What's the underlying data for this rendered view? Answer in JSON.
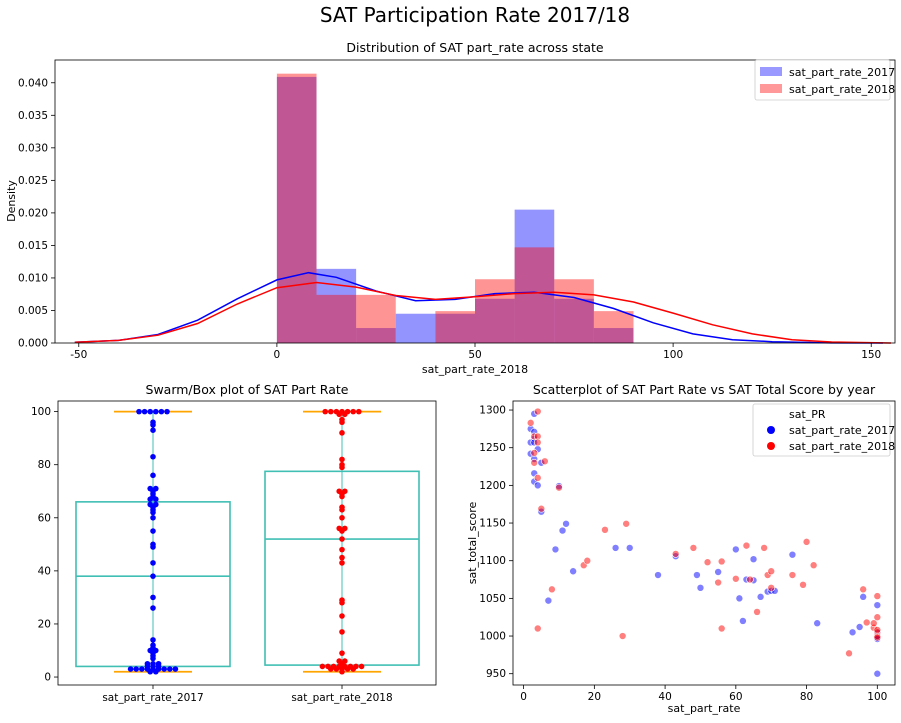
{
  "figure": {
    "suptitle": "SAT Participation Rate 2017/18"
  },
  "colors": {
    "s2017": "#0000ff",
    "s2018": "#ff0000",
    "box": "#40bfb4",
    "whisker": "#ffa500"
  },
  "chart_data": [
    {
      "type": "bar",
      "subtype": "histogram_kde",
      "title": "Distribution of SAT part_rate across state",
      "xlabel": "sat_part_rate_2018",
      "ylabel": "Density",
      "xlim": [
        -56,
        156
      ],
      "ylim": [
        0,
        0.0435
      ],
      "xticks": [
        "-50",
        "0",
        "50",
        "100",
        "150"
      ],
      "yticks": [
        "0.000",
        "0.005",
        "0.010",
        "0.015",
        "0.020",
        "0.025",
        "0.030",
        "0.035",
        "0.040"
      ],
      "legend": {
        "position": "top-right",
        "entries": [
          "sat_part_rate_2017",
          "sat_part_rate_2018"
        ]
      },
      "series": [
        {
          "name": "sat_part_rate_2017",
          "bins": [
            [
              0,
              10,
              0.0409
            ],
            [
              10,
              20,
              0.0114
            ],
            [
              20,
              30,
              0.0023
            ],
            [
              30,
              40,
              0.0045
            ],
            [
              40,
              50,
              0.0045
            ],
            [
              50,
              60,
              0.0068
            ],
            [
              60,
              70,
              0.0205
            ],
            [
              70,
              80,
              0.0068
            ],
            [
              80,
              90,
              0.0023
            ]
          ],
          "kde": [
            [
              -51,
              0.0001
            ],
            [
              -40,
              0.0004
            ],
            [
              -30,
              0.0013
            ],
            [
              -20,
              0.0035
            ],
            [
              -10,
              0.0068
            ],
            [
              0,
              0.0097
            ],
            [
              8,
              0.0108
            ],
            [
              15,
              0.0101
            ],
            [
              25,
              0.008
            ],
            [
              35,
              0.0065
            ],
            [
              45,
              0.0067
            ],
            [
              55,
              0.0076
            ],
            [
              65,
              0.0078
            ],
            [
              75,
              0.007
            ],
            [
              85,
              0.0053
            ],
            [
              95,
              0.0031
            ],
            [
              105,
              0.0014
            ],
            [
              115,
              0.0005
            ],
            [
              125,
              0.0002
            ],
            [
              140,
              2e-05
            ],
            [
              153,
              0.0
            ]
          ]
        },
        {
          "name": "sat_part_rate_2018",
          "bins": [
            [
              0,
              10,
              0.0414
            ],
            [
              10,
              20,
              0.0074
            ],
            [
              20,
              30,
              0.0074
            ],
            [
              40,
              50,
              0.0049
            ],
            [
              50,
              60,
              0.0098
            ],
            [
              60,
              70,
              0.0147
            ],
            [
              70,
              80,
              0.0098
            ],
            [
              80,
              90,
              0.0049
            ]
          ],
          "kde": [
            [
              -51,
              0.0001
            ],
            [
              -40,
              0.0004
            ],
            [
              -30,
              0.0012
            ],
            [
              -20,
              0.003
            ],
            [
              -10,
              0.006
            ],
            [
              0,
              0.0085
            ],
            [
              10,
              0.0093
            ],
            [
              20,
              0.0086
            ],
            [
              30,
              0.0073
            ],
            [
              40,
              0.0067
            ],
            [
              50,
              0.0071
            ],
            [
              60,
              0.0076
            ],
            [
              70,
              0.0078
            ],
            [
              80,
              0.0074
            ],
            [
              90,
              0.0063
            ],
            [
              100,
              0.0046
            ],
            [
              110,
              0.0028
            ],
            [
              120,
              0.0014
            ],
            [
              130,
              0.0005
            ],
            [
              140,
              0.00015
            ],
            [
              155,
              0.0
            ]
          ]
        }
      ]
    },
    {
      "type": "scatter",
      "subtype": "swarm_box",
      "title": "Swarm/Box plot of SAT Part Rate",
      "ylim": [
        -3,
        104
      ],
      "yticks": [
        "0",
        "20",
        "40",
        "60",
        "80",
        "100"
      ],
      "categories": [
        "sat_part_rate_2017",
        "sat_part_rate_2018"
      ],
      "boxes": [
        {
          "name": "sat_part_rate_2017",
          "q1": 4,
          "median": 38,
          "q3": 66,
          "whisker_low": 2,
          "whisker_high": 100
        },
        {
          "name": "sat_part_rate_2018",
          "q1": 4.5,
          "median": 52,
          "q3": 77.5,
          "whisker_low": 2,
          "whisker_high": 100
        }
      ],
      "series": [
        {
          "name": "sat_part_rate_2017",
          "values": [
            2,
            2,
            3,
            3,
            3,
            3,
            3,
            3,
            3,
            3,
            3,
            4,
            4,
            4,
            5,
            5,
            5,
            7,
            8,
            9,
            10,
            10,
            11,
            12,
            14,
            26,
            30,
            38,
            43,
            49,
            50,
            55,
            60,
            62,
            63,
            64,
            65,
            65,
            67,
            67,
            68,
            69,
            70,
            71,
            71,
            76,
            83,
            93,
            95,
            96,
            100,
            100,
            100,
            100,
            100,
            100
          ]
        },
        {
          "name": "sat_part_rate_2018",
          "values": [
            2,
            3,
            3,
            3,
            3,
            3,
            4,
            4,
            4,
            4,
            4,
            4,
            4,
            4,
            5,
            6,
            6,
            9,
            17,
            23,
            28,
            29,
            43,
            45,
            48,
            52,
            55,
            56,
            56,
            60,
            63,
            64,
            68,
            69,
            70,
            70,
            79,
            80,
            82,
            92,
            96,
            97,
            99,
            99,
            100,
            100,
            100,
            100,
            100,
            100,
            100
          ]
        }
      ]
    },
    {
      "type": "scatter",
      "title": "Scatterplot of SAT Part Rate vs SAT Total Score by year",
      "xlabel": "sat_part_rate",
      "ylabel": "sat_total_score",
      "xlim": [
        -3,
        105
      ],
      "ylim": [
        935,
        1312
      ],
      "xticks": [
        "0",
        "20",
        "40",
        "60",
        "80",
        "100"
      ],
      "yticks": [
        "950",
        "1000",
        "1050",
        "1100",
        "1150",
        "1200",
        "1250",
        "1300"
      ],
      "legend": {
        "position": "top-right",
        "title": "sat_PR",
        "entries": [
          "sat_part_rate_2017",
          "sat_part_rate_2018"
        ]
      },
      "series": [
        {
          "name": "sat_part_rate_2017",
          "points": [
            [
              2,
              1242
            ],
            [
              2,
              1257
            ],
            [
              2,
              1275
            ],
            [
              3,
              1295
            ],
            [
              3,
              1271
            ],
            [
              3,
              1262
            ],
            [
              3,
              1257
            ],
            [
              3,
              1235
            ],
            [
              3,
              1216
            ],
            [
              3,
              1205
            ],
            [
              4,
              1248
            ],
            [
              4,
              1200
            ],
            [
              5,
              1165
            ],
            [
              5,
              1230
            ],
            [
              7,
              1047
            ],
            [
              9,
              1115
            ],
            [
              10,
              1199
            ],
            [
              11,
              1140
            ],
            [
              12,
              1149
            ],
            [
              14,
              1086
            ],
            [
              26,
              1117
            ],
            [
              30,
              1117
            ],
            [
              38,
              1081
            ],
            [
              43,
              1106
            ],
            [
              49,
              1081
            ],
            [
              50,
              1064
            ],
            [
              55,
              1085
            ],
            [
              60,
              1115
            ],
            [
              61,
              1050
            ],
            [
              62,
              1020
            ],
            [
              63,
              1075
            ],
            [
              65,
              1102
            ],
            [
              65,
              1074
            ],
            [
              67,
              1052
            ],
            [
              69,
              1059
            ],
            [
              70,
              1060
            ],
            [
              71,
              1060
            ],
            [
              76,
              1108
            ],
            [
              83,
              1017
            ],
            [
              93,
              1005
            ],
            [
              95,
              1012
            ],
            [
              96,
              1052
            ],
            [
              100,
              1041
            ],
            [
              100,
              1000
            ],
            [
              100,
              997
            ],
            [
              100,
              1005
            ],
            [
              100,
              996
            ],
            [
              100,
              950
            ]
          ]
        },
        {
          "name": "sat_part_rate_2018",
          "points": [
            [
              2,
              1283
            ],
            [
              3,
              1265
            ],
            [
              3,
              1243
            ],
            [
              3,
              1230
            ],
            [
              4,
              1298
            ],
            [
              4,
              1265
            ],
            [
              4,
              1257
            ],
            [
              4,
              1210
            ],
            [
              4,
              1010
            ],
            [
              5,
              1169
            ],
            [
              6,
              1232
            ],
            [
              8,
              1062
            ],
            [
              10,
              1197
            ],
            [
              17,
              1094
            ],
            [
              18,
              1100
            ],
            [
              23,
              1141
            ],
            [
              28,
              1000
            ],
            [
              29,
              1149
            ],
            [
              43,
              1109
            ],
            [
              48,
              1117
            ],
            [
              52,
              1098
            ],
            [
              55,
              1071
            ],
            [
              56,
              1010
            ],
            [
              56,
              1099
            ],
            [
              60,
              1076
            ],
            [
              63,
              1120
            ],
            [
              64,
              1075
            ],
            [
              66,
              1032
            ],
            [
              68,
              1117
            ],
            [
              69,
              1081
            ],
            [
              70,
              1086
            ],
            [
              70,
              1064
            ],
            [
              76,
              1081
            ],
            [
              79,
              1068
            ],
            [
              80,
              1125
            ],
            [
              82,
              1094
            ],
            [
              92,
              977
            ],
            [
              96,
              1062
            ],
            [
              97,
              1018
            ],
            [
              99,
              1011
            ],
            [
              99,
              1017
            ],
            [
              100,
              1053
            ],
            [
              100,
              1025
            ],
            [
              100,
              1005
            ],
            [
              100,
              1000
            ],
            [
              100,
              998
            ],
            [
              100,
              1008
            ]
          ]
        }
      ]
    }
  ]
}
